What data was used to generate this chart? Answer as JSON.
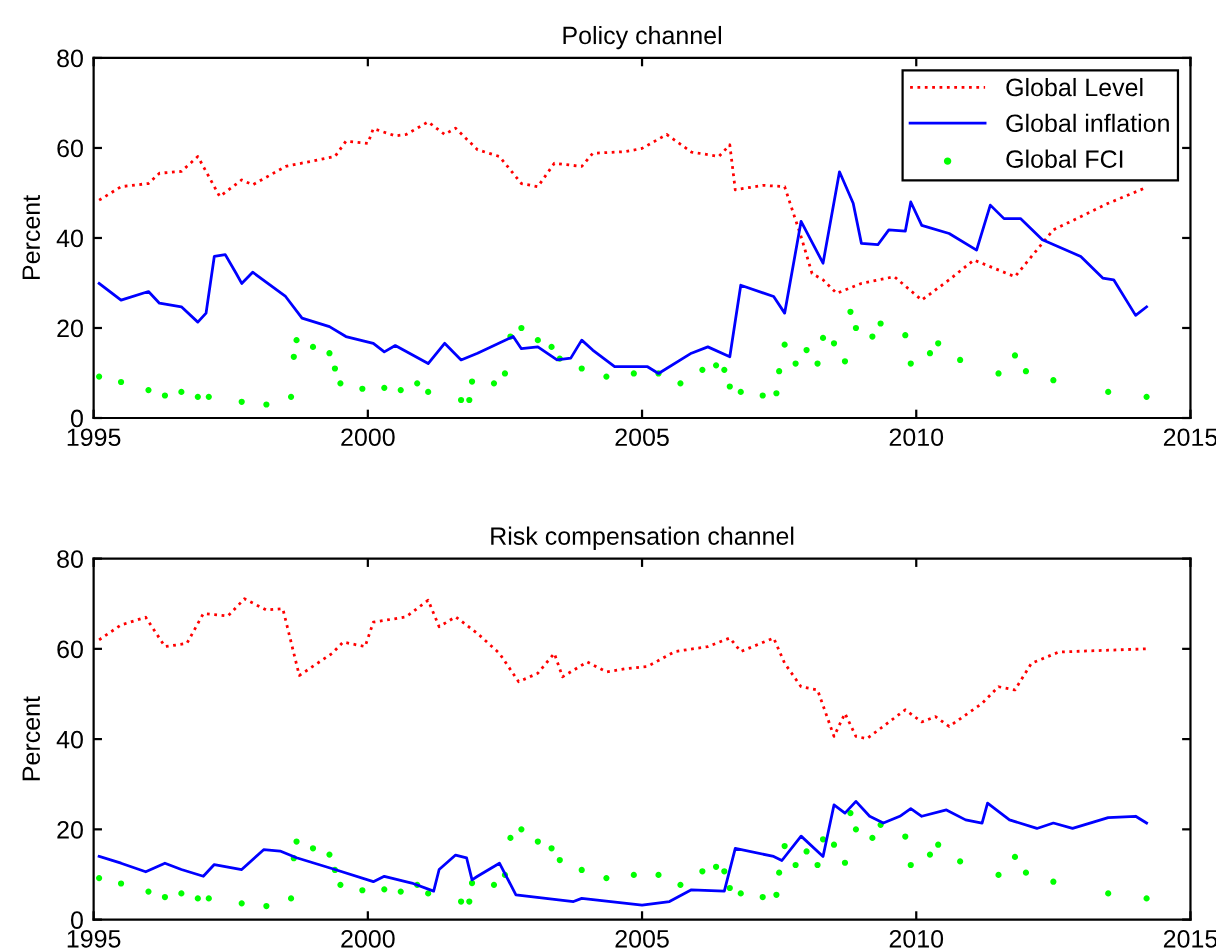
{
  "chart_data": [
    {
      "type": "line",
      "title": "Policy channel",
      "ylabel": "Percent",
      "xlim": [
        1995,
        2015
      ],
      "xticks": [
        1995,
        2000,
        2005,
        2010,
        2015
      ],
      "ylim": [
        0,
        80
      ],
      "yticks": [
        0,
        20,
        40,
        60,
        80
      ],
      "grid": false,
      "legend": "top right",
      "series": [
        {
          "name": "Global Level",
          "color": "#ff0000",
          "line_style": "dotted",
          "marker": "none",
          "x": [
            1995.1,
            1995.5,
            1996.0,
            1996.2,
            1996.6,
            1996.9,
            1997.3,
            1997.7,
            1997.9,
            1998.5,
            1999.4,
            1999.6,
            2000.0,
            2000.1,
            2000.5,
            2000.7,
            2001.1,
            2001.4,
            2001.6,
            2002.0,
            2002.4,
            2002.8,
            2003.1,
            2003.4,
            2003.9,
            2004.1,
            2004.7,
            2005.0,
            2005.45,
            2005.9,
            2006.4,
            2006.6,
            2006.7,
            2007.2,
            2007.6,
            2007.9,
            2008.1,
            2008.3,
            2008.55,
            2009.0,
            2009.6,
            2010.1,
            2010.6,
            2011.05,
            2011.8,
            2012.5,
            2013.5,
            2014.15
          ],
          "values": [
            48.4,
            51.4,
            52.1,
            54.4,
            54.8,
            58.1,
            49.2,
            52.9,
            51.8,
            55.9,
            58.1,
            61.5,
            61.0,
            64.3,
            62.7,
            63.0,
            65.8,
            63.0,
            64.4,
            59.6,
            58.1,
            52.1,
            51.4,
            56.6,
            55.9,
            58.8,
            59.2,
            59.9,
            63.0,
            59.1,
            58.1,
            60.7,
            50.7,
            51.7,
            51.4,
            40.3,
            32.1,
            30.7,
            27.7,
            29.9,
            31.4,
            26.2,
            30.7,
            35.1,
            31.4,
            41.8,
            47.7,
            51.0
          ]
        },
        {
          "name": "Global inflation",
          "color": "#0000ff",
          "line_style": "solid",
          "marker": "none",
          "x": [
            1995.1,
            1995.5,
            1996.0,
            1996.2,
            1996.6,
            1996.9,
            1997.05,
            1997.2,
            1997.4,
            1997.6,
            1997.7,
            1997.9,
            1998.5,
            1998.8,
            1999.3,
            1999.6,
            2000.1,
            2000.3,
            2000.5,
            2001.1,
            2001.4,
            2001.7,
            2002.0,
            2002.65,
            2002.8,
            2003.1,
            2003.45,
            2003.7,
            2003.9,
            2004.1,
            2004.5,
            2005.1,
            2005.3,
            2005.9,
            2006.2,
            2006.6,
            2006.8,
            2007.4,
            2007.6,
            2007.9,
            2008.3,
            2008.6,
            2008.85,
            2009.0,
            2009.3,
            2009.5,
            2009.8,
            2009.9,
            2010.1,
            2010.6,
            2011.1,
            2011.35,
            2011.6,
            2011.9,
            2012.3,
            2013.0,
            2013.4,
            2013.6,
            2014.0,
            2014.2
          ],
          "values": [
            29.9,
            26.2,
            28.1,
            25.5,
            24.7,
            21.3,
            23.3,
            35.9,
            36.3,
            32.1,
            29.9,
            32.4,
            27.0,
            22.2,
            20.3,
            18.1,
            16.6,
            14.7,
            16.1,
            12.1,
            16.6,
            12.9,
            14.4,
            18.1,
            15.4,
            15.8,
            12.9,
            13.3,
            17.3,
            15.1,
            11.4,
            11.4,
            9.9,
            14.4,
            15.8,
            13.6,
            29.5,
            27.0,
            23.3,
            43.7,
            34.4,
            54.7,
            47.7,
            38.8,
            38.5,
            41.8,
            41.5,
            48.0,
            42.8,
            41.0,
            37.3,
            47.3,
            44.3,
            44.3,
            39.6,
            35.9,
            31.1,
            30.7,
            22.8,
            24.7
          ]
        },
        {
          "name": "Global FCI",
          "type": "scatter",
          "color": "#00ff00",
          "marker": "circle",
          "x": [
            1995.1,
            1995.5,
            1996.0,
            1996.3,
            1996.6,
            1996.9,
            1997.1,
            1997.7,
            1998.15,
            1998.6,
            1998.65,
            1998.7,
            1999.0,
            1999.3,
            1999.4,
            1999.5,
            1999.9,
            2000.3,
            2000.6,
            2000.9,
            2001.1,
            2001.7,
            2001.85,
            2001.9,
            2002.3,
            2002.5,
            2002.6,
            2002.8,
            2003.1,
            2003.35,
            2003.5,
            2003.9,
            2004.35,
            2004.85,
            2005.3,
            2005.7,
            2006.1,
            2006.35,
            2006.5,
            2006.6,
            2006.8,
            2007.2,
            2007.45,
            2007.5,
            2007.6,
            2007.8,
            2008.0,
            2008.2,
            2008.3,
            2008.5,
            2008.7,
            2008.8,
            2008.9,
            2009.2,
            2009.35,
            2009.8,
            2009.9,
            2010.25,
            2010.4,
            2010.8,
            2011.5,
            2011.8,
            2012.0,
            2012.5,
            2013.5,
            2014.2
          ],
          "values": [
            9.2,
            8.0,
            6.2,
            5.0,
            5.8,
            4.7,
            4.7,
            3.6,
            3.0,
            4.7,
            13.6,
            17.3,
            15.8,
            14.4,
            11.0,
            7.7,
            6.5,
            6.7,
            6.2,
            7.7,
            5.8,
            4.0,
            4.0,
            8.1,
            7.7,
            9.9,
            18.1,
            20.0,
            17.3,
            15.8,
            13.2,
            11.0,
            9.2,
            9.9,
            9.9,
            7.7,
            10.7,
            11.7,
            10.7,
            7.0,
            5.8,
            5.0,
            5.5,
            10.4,
            16.3,
            12.1,
            15.1,
            12.1,
            17.8,
            16.6,
            12.6,
            23.6,
            20.0,
            18.1,
            21.0,
            18.4,
            12.1,
            14.4,
            16.6,
            12.9,
            9.9,
            13.9,
            10.4,
            8.4,
            5.8,
            4.7
          ]
        }
      ]
    },
    {
      "type": "line",
      "title": "Risk compensation channel",
      "ylabel": "Percent",
      "xlim": [
        1995,
        2015
      ],
      "xticks": [
        1995,
        2000,
        2005,
        2010,
        2015
      ],
      "ylim": [
        0,
        80
      ],
      "yticks": [
        0,
        20,
        40,
        60,
        80
      ],
      "grid": false,
      "legend": false,
      "series": [
        {
          "color": "#ff0000",
          "line_style": "dotted",
          "marker": "none",
          "x": [
            1995.1,
            1995.5,
            1995.95,
            1996.3,
            1996.7,
            1997.0,
            1997.45,
            1997.75,
            1998.15,
            1998.45,
            1998.75,
            1999.35,
            1999.55,
            1999.95,
            2000.1,
            2000.7,
            2001.1,
            2001.3,
            2001.6,
            2002.0,
            2002.4,
            2002.75,
            2003.1,
            2003.4,
            2003.55,
            2004.0,
            2004.35,
            2004.7,
            2005.1,
            2005.6,
            2006.2,
            2006.6,
            2006.8,
            2007.4,
            2007.6,
            2007.9,
            2008.2,
            2008.5,
            2008.7,
            2008.9,
            2009.1,
            2009.8,
            2010.1,
            2010.35,
            2010.6,
            2011.2,
            2011.5,
            2011.8,
            2012.1,
            2012.6,
            2013.5,
            2014.2
          ],
          "values": [
            62.0,
            65.3,
            67.0,
            60.5,
            61.2,
            67.8,
            67.3,
            71.1,
            68.6,
            68.9,
            54.1,
            59.0,
            61.5,
            60.5,
            65.9,
            67.1,
            70.8,
            64.9,
            67.1,
            63.4,
            59.0,
            52.7,
            54.6,
            59.0,
            53.8,
            57.1,
            54.9,
            55.6,
            56.1,
            59.4,
            60.5,
            62.4,
            59.4,
            62.4,
            56.8,
            51.6,
            50.9,
            40.6,
            45.7,
            40.6,
            40.1,
            46.5,
            43.8,
            45.0,
            42.8,
            47.9,
            51.6,
            50.9,
            56.8,
            59.3,
            59.7,
            60.0
          ]
        },
        {
          "color": "#0000ff",
          "line_style": "solid",
          "marker": "none",
          "x": [
            1995.1,
            1995.5,
            1995.95,
            1996.3,
            1996.6,
            1997.0,
            1997.2,
            1997.7,
            1998.1,
            1998.4,
            1998.7,
            1999.4,
            2000.1,
            2000.3,
            2000.8,
            2001.2,
            2001.3,
            2001.6,
            2001.8,
            2001.9,
            2002.0,
            2002.4,
            2002.7,
            2003.75,
            2003.9,
            2005.0,
            2005.5,
            2005.9,
            2006.5,
            2006.7,
            2007.4,
            2007.55,
            2007.9,
            2008.3,
            2008.5,
            2008.7,
            2008.9,
            2009.15,
            2009.4,
            2009.7,
            2009.9,
            2010.1,
            2010.55,
            2010.9,
            2011.2,
            2011.3,
            2011.7,
            2012.2,
            2012.5,
            2012.85,
            2013.5,
            2014.0,
            2014.2
          ],
          "values": [
            14.0,
            12.5,
            10.6,
            12.5,
            11.1,
            9.6,
            12.2,
            11.1,
            15.5,
            15.2,
            13.7,
            11.1,
            8.4,
            9.6,
            8.1,
            6.3,
            11.1,
            14.3,
            13.7,
            8.8,
            9.6,
            12.5,
            5.5,
            4.0,
            4.7,
            3.2,
            4.0,
            6.6,
            6.3,
            15.8,
            14.0,
            13.1,
            18.5,
            14.0,
            25.4,
            23.6,
            26.2,
            22.9,
            21.4,
            22.9,
            24.6,
            22.9,
            24.3,
            22.1,
            21.4,
            25.8,
            22.1,
            20.2,
            21.4,
            20.2,
            22.6,
            22.9,
            21.4
          ]
        },
        {
          "type": "scatter",
          "color": "#00ff00",
          "marker": "circle",
          "x": [
            1995.1,
            1995.5,
            1996.0,
            1996.3,
            1996.6,
            1996.9,
            1997.1,
            1997.7,
            1998.15,
            1998.6,
            1998.65,
            1998.7,
            1999.0,
            1999.3,
            1999.4,
            1999.5,
            1999.9,
            2000.3,
            2000.6,
            2000.9,
            2001.1,
            2001.7,
            2001.85,
            2001.9,
            2002.3,
            2002.5,
            2002.6,
            2002.8,
            2003.1,
            2003.35,
            2003.5,
            2003.9,
            2004.35,
            2004.85,
            2005.3,
            2005.7,
            2006.1,
            2006.35,
            2006.5,
            2006.6,
            2006.8,
            2007.2,
            2007.45,
            2007.5,
            2007.6,
            2007.8,
            2008.0,
            2008.2,
            2008.3,
            2008.5,
            2008.7,
            2008.8,
            2008.9,
            2009.2,
            2009.35,
            2009.8,
            2009.9,
            2010.25,
            2010.4,
            2010.8,
            2011.5,
            2011.8,
            2012.0,
            2012.5,
            2013.5,
            2014.2
          ],
          "values": [
            9.2,
            8.0,
            6.2,
            5.0,
            5.8,
            4.7,
            4.7,
            3.6,
            3.0,
            4.7,
            13.6,
            17.3,
            15.8,
            14.4,
            11.0,
            7.7,
            6.5,
            6.7,
            6.2,
            7.7,
            5.8,
            4.0,
            4.0,
            8.1,
            7.7,
            9.9,
            18.1,
            20.0,
            17.3,
            15.8,
            13.2,
            11.0,
            9.2,
            9.9,
            9.9,
            7.7,
            10.7,
            11.7,
            10.7,
            7.0,
            5.8,
            5.0,
            5.5,
            10.4,
            16.3,
            12.1,
            15.1,
            12.1,
            17.8,
            16.6,
            12.6,
            23.6,
            20.0,
            18.1,
            21.0,
            18.4,
            12.1,
            14.4,
            16.6,
            12.9,
            9.9,
            13.9,
            10.4,
            8.4,
            5.8,
            4.7
          ]
        }
      ]
    }
  ]
}
